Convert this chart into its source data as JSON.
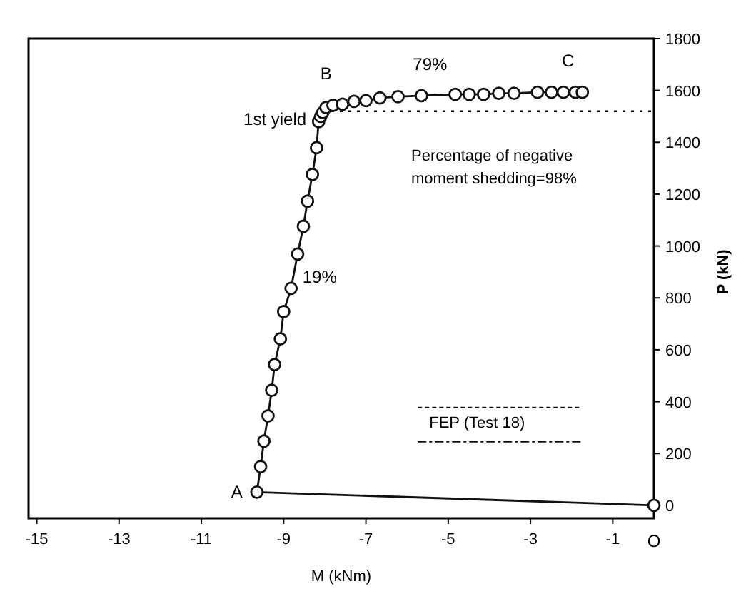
{
  "chart_data": {
    "type": "line",
    "xlabel": "M (kNm)",
    "ylabel": "P (kN)",
    "xlim": [
      -15.2,
      0
    ],
    "ylim": [
      -50,
      1800
    ],
    "xticks": [
      -15,
      -13,
      -11,
      -9,
      -7,
      -5,
      -3,
      -1
    ],
    "yticks": [
      0,
      200,
      400,
      600,
      800,
      1000,
      1200,
      1400,
      1600,
      1800
    ],
    "series": [
      {
        "name": "FEP (Test 18)",
        "color": "#111111",
        "x": [
          0,
          -9.65,
          -9.56,
          -9.48,
          -9.38,
          -9.29,
          -9.22,
          -9.08,
          -9.0,
          -8.82,
          -8.66,
          -8.52,
          -8.42,
          -8.3,
          -8.2,
          -8.15,
          -8.1,
          -8.05,
          -7.97,
          -7.8,
          -7.57,
          -7.29,
          -7.0,
          -6.66,
          -6.22,
          -5.65,
          -4.83,
          -4.49,
          -4.14,
          -3.77,
          -3.4,
          -2.83,
          -2.49,
          -2.2,
          -1.91,
          -1.74
        ],
        "values": [
          0,
          51,
          149,
          248,
          345,
          444,
          543,
          642,
          747,
          837,
          969,
          1076,
          1173,
          1276,
          1379,
          1480,
          1500,
          1515,
          1534,
          1543,
          1547,
          1558,
          1561,
          1571,
          1576,
          1580,
          1585,
          1585,
          1585,
          1589,
          1589,
          1593,
          1593,
          1593,
          1593,
          1593
        ]
      }
    ],
    "marker": "circle",
    "line_style": "solid",
    "legend": "right",
    "grid": false,
    "ref_lines": [
      {
        "axis": "y",
        "value": 1520,
        "line_style": "dotted"
      }
    ],
    "annotations": [
      {
        "text": "A",
        "x": -9.65,
        "y": 51
      },
      {
        "text": "B",
        "x": -7.97,
        "y": 1534
      },
      {
        "text": "C",
        "x": -1.74,
        "y": 1593
      },
      {
        "text": "O",
        "x": 0,
        "y": 0
      },
      {
        "text": "1st yield",
        "x": -8.1,
        "y": 1500
      },
      {
        "text": "19%",
        "x": -8.82,
        "y": 837
      },
      {
        "text": "79%",
        "x": -5.65,
        "y": 1580
      },
      "Percentage of negative moment shedding=98%"
    ]
  }
}
